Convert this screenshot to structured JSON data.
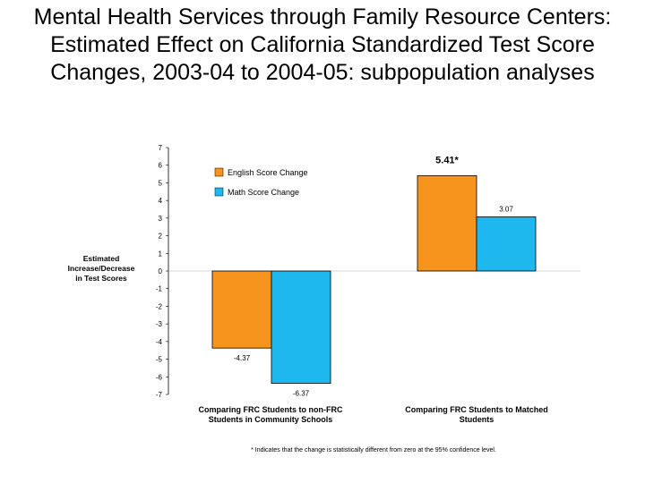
{
  "title": "Mental Health Services through Family Resource Centers: Estimated Effect on California Standardized Test Score Changes, 2003-04 to 2004-05: subpopulation analyses",
  "chart_data": {
    "type": "bar",
    "ylabel": "Estimated Increase/Decrease in Test Scores",
    "ylim": [
      -7,
      7
    ],
    "yticks": [
      7,
      6,
      5,
      4,
      3,
      2,
      1,
      0,
      -1,
      -2,
      -3,
      -4,
      -5,
      -6,
      -7
    ],
    "categories": [
      "Comparing FRC Students to non-FRC Students in Community Schools",
      "Comparing FRC Students to Matched Students"
    ],
    "series": [
      {
        "name": "English Score Change",
        "color": "#F7941D",
        "values": [
          -4.37,
          5.41
        ],
        "labels": [
          "-4.37",
          "5.41*"
        ]
      },
      {
        "name": "Math Score Change",
        "color": "#1FB8EE",
        "values": [
          -6.37,
          3.07
        ],
        "labels": [
          "-6.37",
          "3.07"
        ]
      }
    ],
    "legend": "top-left",
    "note": "* Indicates that the change is statistically different from zero at the 95% confidence level."
  }
}
